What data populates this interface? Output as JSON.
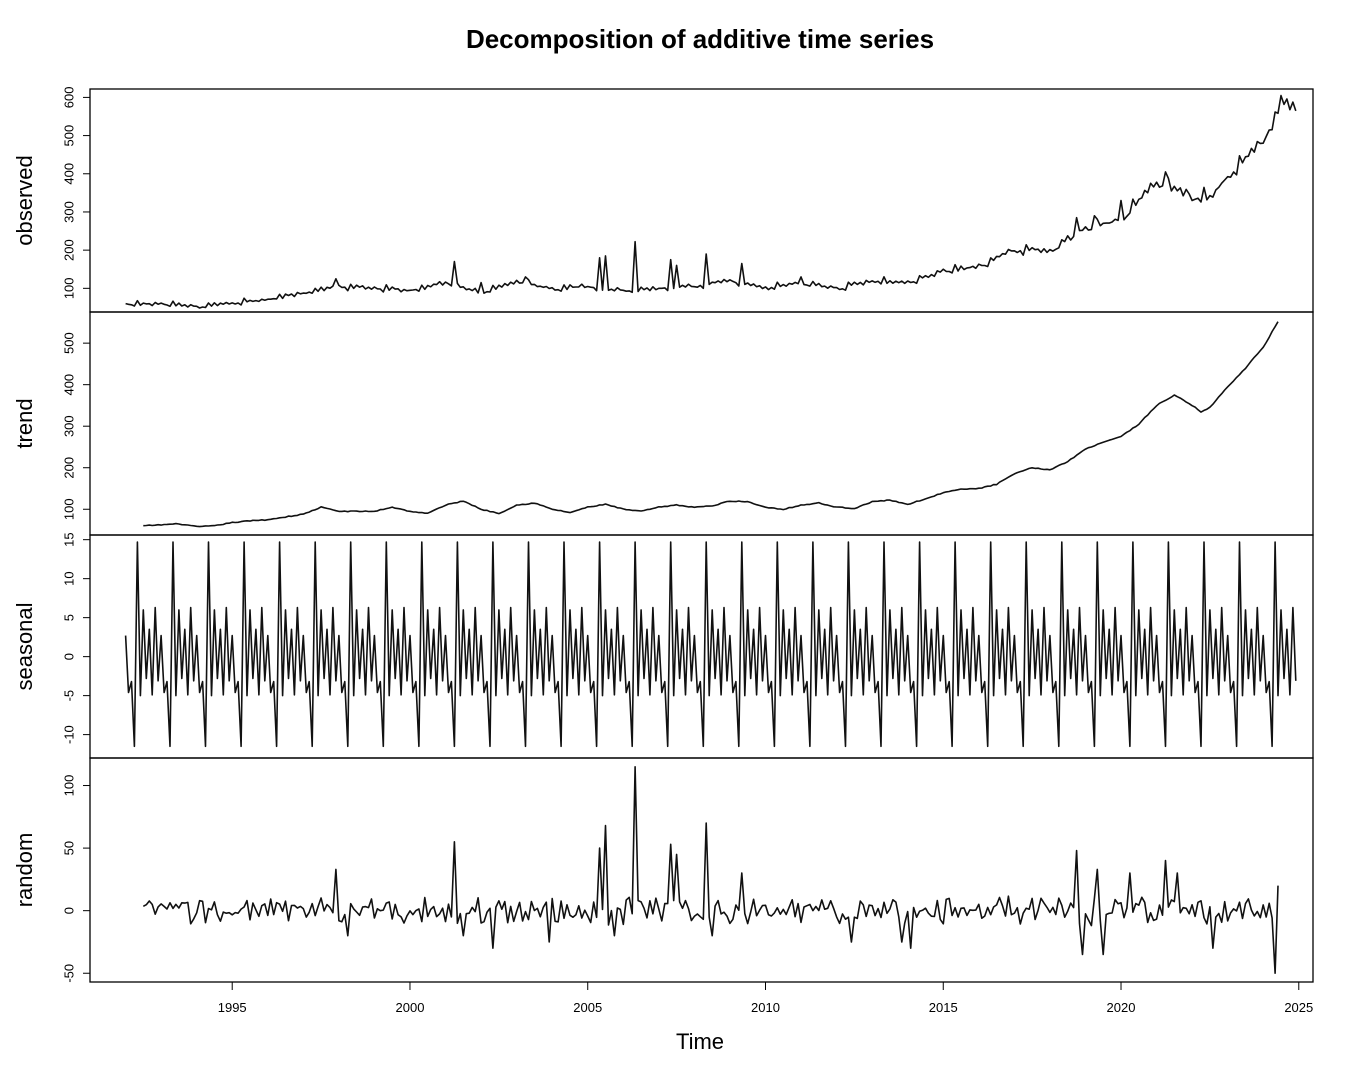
{
  "chart_data": {
    "type": "line",
    "title": "Decomposition of additive time series",
    "xlabel": "Time",
    "xlim": [
      1991.0,
      2025.4
    ],
    "x_ticks": [
      1995,
      2000,
      2005,
      2010,
      2015,
      2020,
      2025
    ],
    "frequency": 12,
    "panels": [
      {
        "name": "observed",
        "ylim": [
          38,
          622
        ],
        "y_ticks": [
          100,
          200,
          300,
          400,
          500,
          600
        ],
        "start": 1992.0,
        "end": 2024.917,
        "anchors": [
          [
            1992.0,
            58
          ],
          [
            1993.0,
            60
          ],
          [
            1994.0,
            52
          ],
          [
            1995.0,
            62
          ],
          [
            1996.0,
            72
          ],
          [
            1997.0,
            88
          ],
          [
            1998.0,
            105
          ],
          [
            1999.0,
            100
          ],
          [
            2000.0,
            95
          ],
          [
            2001.0,
            115
          ],
          [
            2002.0,
            90
          ],
          [
            2003.0,
            118
          ],
          [
            2004.0,
            100
          ],
          [
            2005.0,
            105
          ],
          [
            2006.0,
            95
          ],
          [
            2007.0,
            100
          ],
          [
            2008.0,
            105
          ],
          [
            2009.0,
            120
          ],
          [
            2010.0,
            100
          ],
          [
            2011.0,
            115
          ],
          [
            2012.0,
            100
          ],
          [
            2013.0,
            120
          ],
          [
            2014.0,
            115
          ],
          [
            2015.0,
            145
          ],
          [
            2016.0,
            158
          ],
          [
            2017.0,
            200
          ],
          [
            2018.0,
            200
          ],
          [
            2019.0,
            255
          ],
          [
            2020.0,
            280
          ],
          [
            2020.5,
            330
          ],
          [
            2021.0,
            380
          ],
          [
            2021.5,
            360
          ],
          [
            2022.0,
            345
          ],
          [
            2022.5,
            340
          ],
          [
            2023.0,
            390
          ],
          [
            2023.5,
            440
          ],
          [
            2024.0,
            500
          ],
          [
            2024.33,
            540
          ],
          [
            2024.5,
            595
          ],
          [
            2024.917,
            570
          ]
        ],
        "spikes": [
          [
            1997.917,
            125
          ],
          [
            2001.25,
            170
          ],
          [
            2002.0,
            115
          ],
          [
            2003.25,
            130
          ],
          [
            2005.333,
            180
          ],
          [
            2005.5,
            185
          ],
          [
            2006.333,
            222
          ],
          [
            2007.333,
            175
          ],
          [
            2007.5,
            160
          ],
          [
            2008.333,
            190
          ],
          [
            2009.333,
            165
          ],
          [
            2011.0,
            130
          ],
          [
            2018.75,
            285
          ],
          [
            2019.25,
            290
          ],
          [
            2020.0,
            330
          ],
          [
            2021.25,
            405
          ],
          [
            2022.0,
            330
          ],
          [
            2024.0,
            480
          ]
        ]
      },
      {
        "name": "trend",
        "ylim": [
          38,
          575
        ],
        "y_ticks": [
          100,
          200,
          300,
          400,
          500
        ],
        "start": 1992.5,
        "end": 2024.417,
        "anchors": [
          [
            1992.5,
            60
          ],
          [
            1993.5,
            65
          ],
          [
            1994.0,
            58
          ],
          [
            1994.5,
            60
          ],
          [
            1995.0,
            68
          ],
          [
            1995.5,
            72
          ],
          [
            1996.0,
            75
          ],
          [
            1997.0,
            88
          ],
          [
            1997.5,
            105
          ],
          [
            1998.0,
            95
          ],
          [
            1999.0,
            95
          ],
          [
            1999.5,
            105
          ],
          [
            2000.0,
            95
          ],
          [
            2000.5,
            90
          ],
          [
            2001.0,
            110
          ],
          [
            2001.5,
            120
          ],
          [
            2002.0,
            100
          ],
          [
            2002.5,
            90
          ],
          [
            2003.0,
            110
          ],
          [
            2003.5,
            115
          ],
          [
            2004.0,
            100
          ],
          [
            2004.5,
            92
          ],
          [
            2005.0,
            105
          ],
          [
            2005.5,
            112
          ],
          [
            2006.0,
            100
          ],
          [
            2006.5,
            95
          ],
          [
            2007.0,
            105
          ],
          [
            2007.5,
            110
          ],
          [
            2008.0,
            105
          ],
          [
            2008.5,
            108
          ],
          [
            2009.0,
            120
          ],
          [
            2009.5,
            118
          ],
          [
            2010.0,
            105
          ],
          [
            2010.5,
            100
          ],
          [
            2011.0,
            110
          ],
          [
            2011.5,
            115
          ],
          [
            2012.0,
            105
          ],
          [
            2012.5,
            102
          ],
          [
            2013.0,
            118
          ],
          [
            2013.5,
            122
          ],
          [
            2014.0,
            112
          ],
          [
            2014.5,
            125
          ],
          [
            2015.0,
            140
          ],
          [
            2015.5,
            148
          ],
          [
            2016.0,
            150
          ],
          [
            2016.5,
            160
          ],
          [
            2017.0,
            185
          ],
          [
            2017.5,
            200
          ],
          [
            2018.0,
            195
          ],
          [
            2018.5,
            215
          ],
          [
            2019.0,
            245
          ],
          [
            2019.5,
            262
          ],
          [
            2020.0,
            275
          ],
          [
            2020.5,
            305
          ],
          [
            2021.0,
            350
          ],
          [
            2021.5,
            375
          ],
          [
            2022.0,
            350
          ],
          [
            2022.25,
            335
          ],
          [
            2022.5,
            345
          ],
          [
            2023.0,
            395
          ],
          [
            2023.5,
            440
          ],
          [
            2024.0,
            490
          ],
          [
            2024.417,
            552
          ]
        ]
      },
      {
        "name": "seasonal",
        "ylim": [
          -13.0,
          15.6
        ],
        "y_ticks": [
          -10,
          -5,
          0,
          5,
          10,
          15
        ],
        "start": 1992.0,
        "end": 2024.917,
        "pattern": [
          2.7,
          -4.6,
          -3.2,
          -11.5,
          14.7,
          -5.0,
          6.0,
          -2.8,
          3.5,
          -4.9,
          6.3,
          -3.1
        ]
      },
      {
        "name": "random",
        "ylim": [
          -57,
          122
        ],
        "y_ticks": [
          -50,
          0,
          50,
          100
        ],
        "start": 1992.5,
        "end": 2024.417,
        "amplitude": 9,
        "spikes": [
          [
            1997.917,
            33
          ],
          [
            1998.25,
            -20
          ],
          [
            2001.25,
            55
          ],
          [
            2001.5,
            -20
          ],
          [
            2002.333,
            -30
          ],
          [
            2003.917,
            -25
          ],
          [
            2005.333,
            50
          ],
          [
            2005.5,
            68
          ],
          [
            2005.75,
            -20
          ],
          [
            2006.333,
            115
          ],
          [
            2007.333,
            53
          ],
          [
            2007.5,
            45
          ],
          [
            2008.333,
            70
          ],
          [
            2008.5,
            -20
          ],
          [
            2009.333,
            30
          ],
          [
            2012.417,
            -25
          ],
          [
            2013.833,
            -25
          ],
          [
            2014.083,
            -30
          ],
          [
            2018.75,
            48
          ],
          [
            2018.917,
            -35
          ],
          [
            2019.333,
            33
          ],
          [
            2019.5,
            -35
          ],
          [
            2020.25,
            30
          ],
          [
            2021.25,
            40
          ],
          [
            2021.583,
            30
          ],
          [
            2022.583,
            -30
          ],
          [
            2024.333,
            -50
          ],
          [
            2024.417,
            20
          ]
        ]
      }
    ]
  }
}
